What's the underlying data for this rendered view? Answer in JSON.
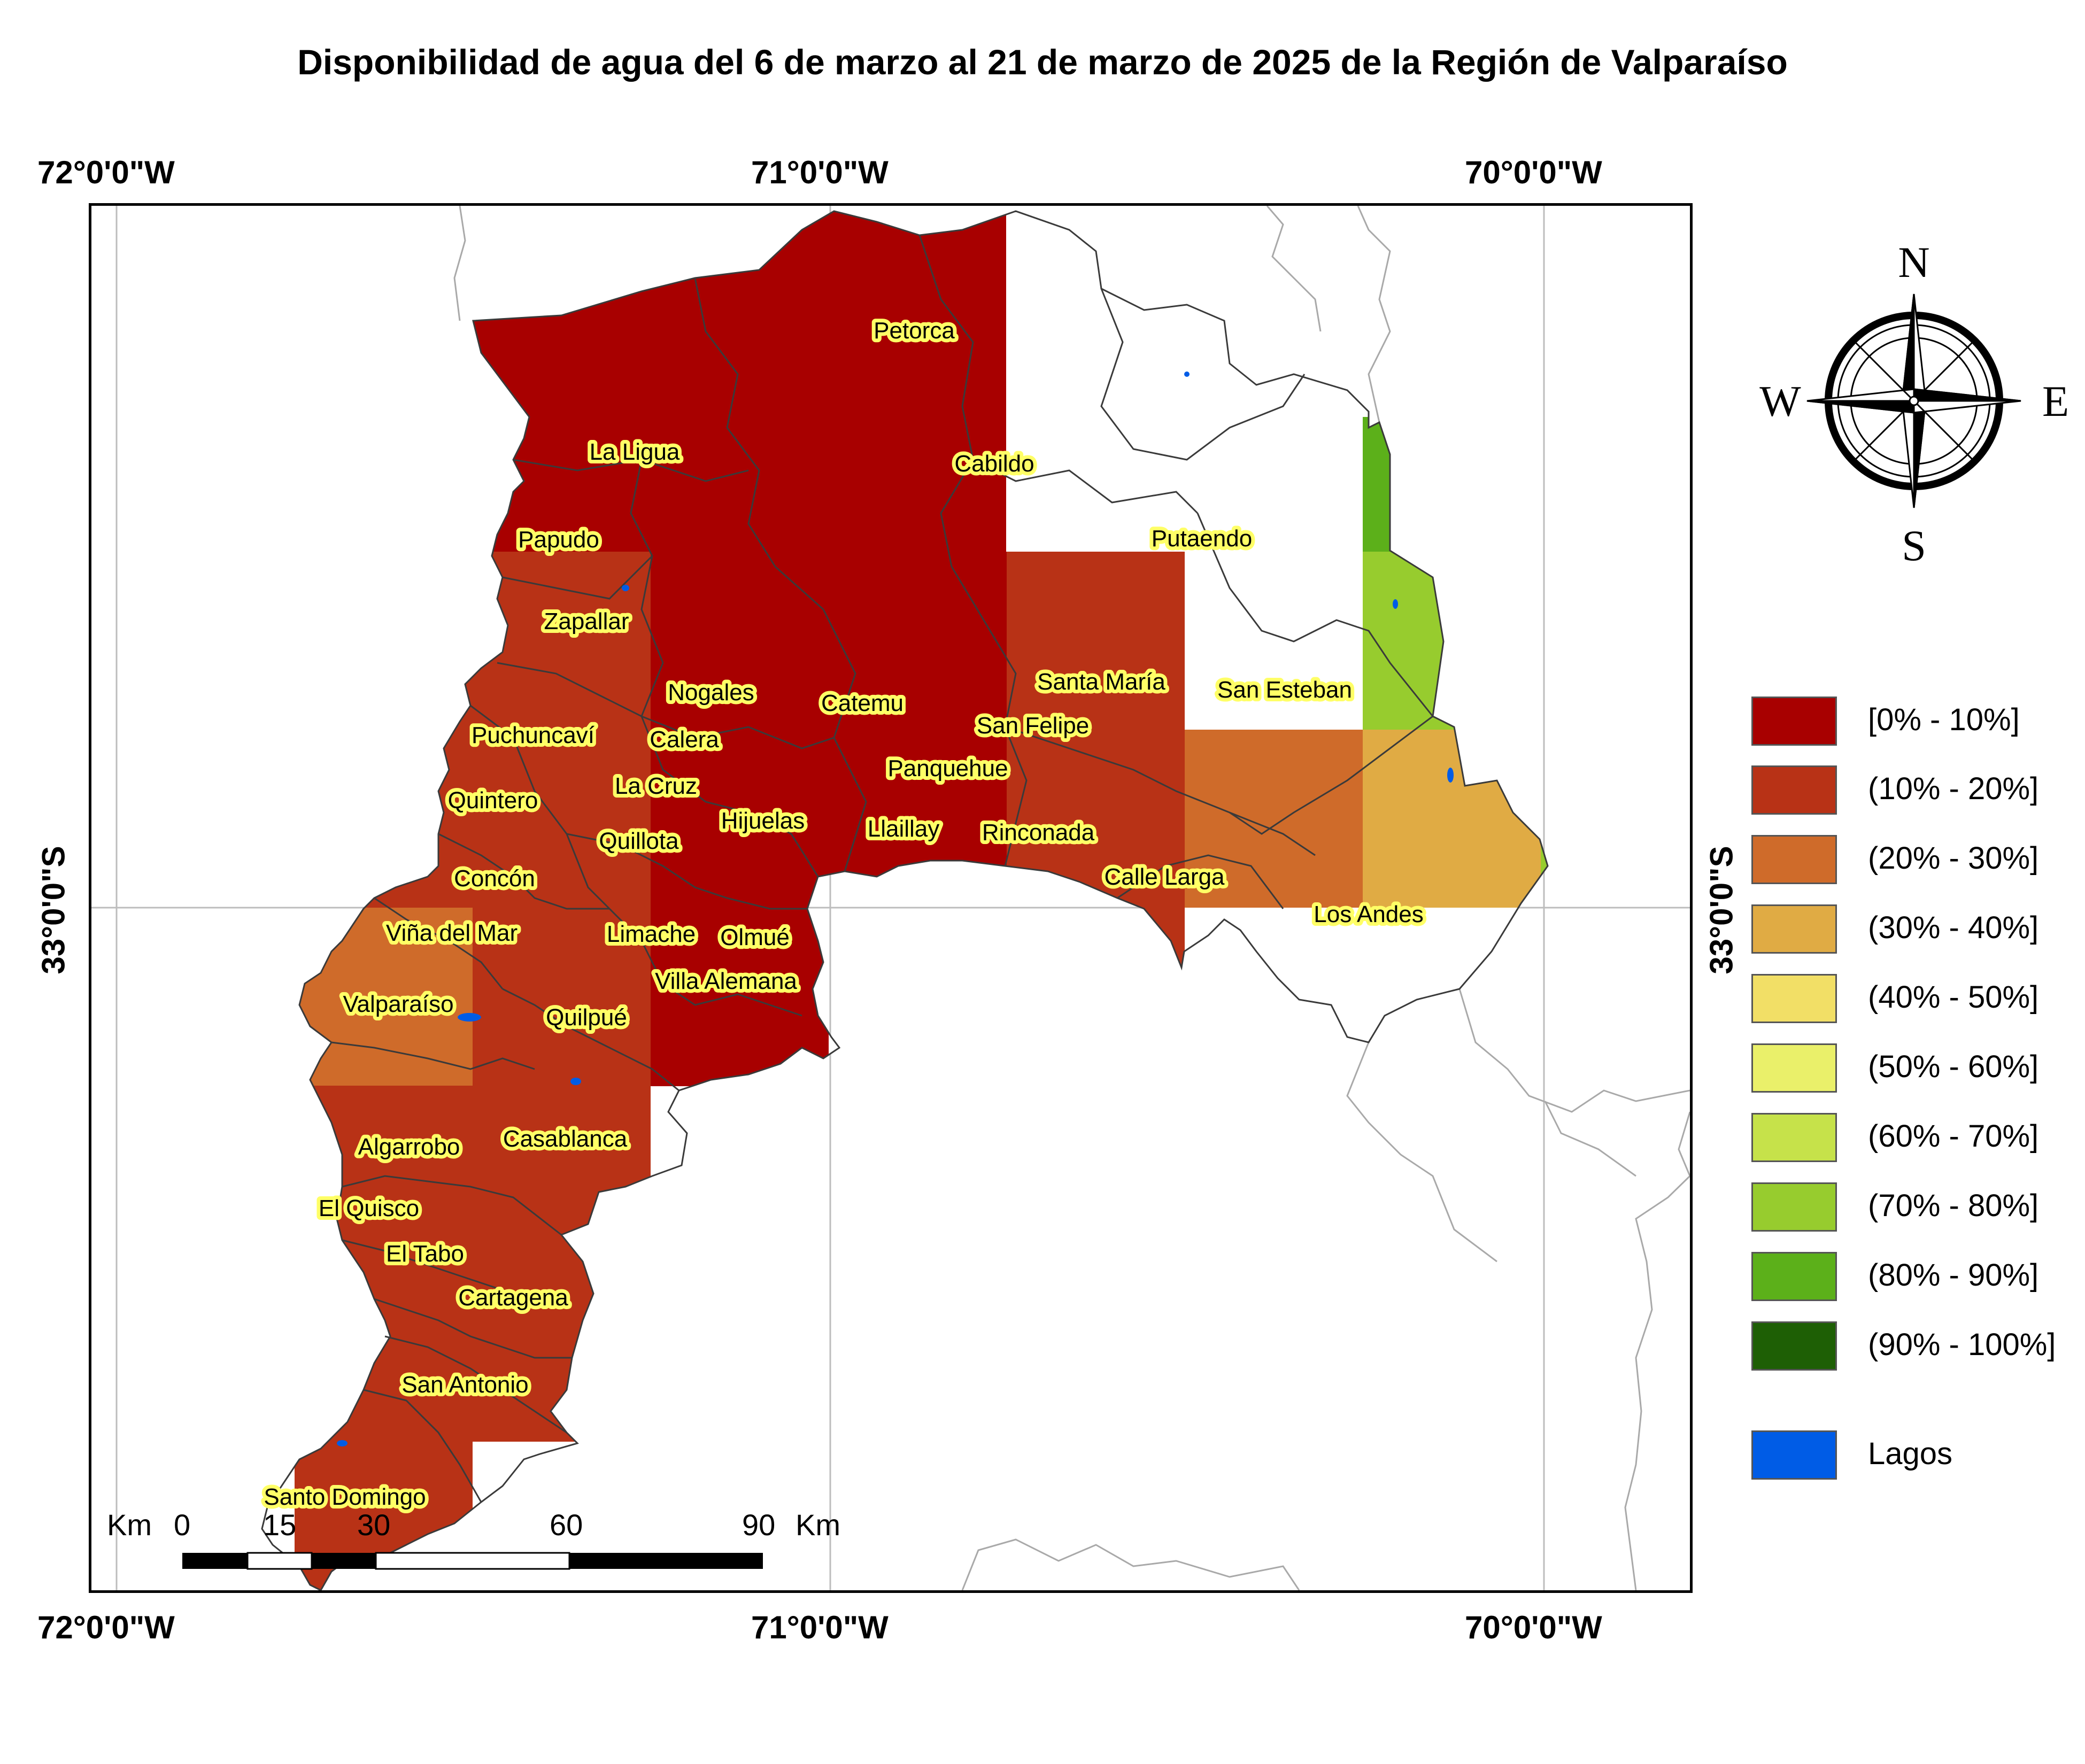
{
  "title": "Disponibilidad de agua del 6 de marzo al 21 de marzo de 2025 de la Región de Valparaíso",
  "coordinates": {
    "top": [
      "72°0'0\"W",
      "71°0'0\"W",
      "70°0'0\"W"
    ],
    "bottom": [
      "72°0'0\"W",
      "71°0'0\"W",
      "70°0'0\"W"
    ],
    "left": "33°0'0\"S",
    "right": "33°0'0\"S"
  },
  "compass": {
    "n": "N",
    "s": "S",
    "e": "E",
    "w": "W"
  },
  "legend": [
    {
      "label": "[0% - 10%]",
      "color": "#a80000"
    },
    {
      "label": "(10% - 20%]",
      "color": "#b83216"
    },
    {
      "label": "(20% - 30%]",
      "color": "#cf6b2a"
    },
    {
      "label": "(30% - 40%]",
      "color": "#e0ab44"
    },
    {
      "label": "(40% - 50%]",
      "color": "#f2df66"
    },
    {
      "label": "(50% - 60%]",
      "color": "#eaf06a"
    },
    {
      "label": "(60% - 70%]",
      "color": "#c6e24a"
    },
    {
      "label": "(70% - 80%]",
      "color": "#97cc2e"
    },
    {
      "label": "(80% - 90%]",
      "color": "#5cb01a"
    },
    {
      "label": "(90% - 100%]",
      "color": "#1e5f05"
    }
  ],
  "legend_lakes": {
    "label": "Lagos",
    "color": "#005ce6"
  },
  "scale_bar": {
    "unit_left": "Km",
    "ticks": [
      "0",
      "15",
      "30",
      "60",
      "90"
    ],
    "unit_right": "Km"
  },
  "municipalities": [
    "Petorca",
    "La Ligua",
    "Cabildo",
    "Papudo",
    "Putaendo",
    "Zapallar",
    "Nogales",
    "Catemu",
    "Santa María",
    "San Esteban",
    "Puchuncaví",
    "Calera",
    "San Felipe",
    "Panquehue",
    "Quintero",
    "La Cruz",
    "Hijuelas",
    "Llaillay",
    "Rinconada",
    "Quillota",
    "Concón",
    "Calle Larga",
    "Los Andes",
    "Viña del Mar",
    "Limache",
    "Olmué",
    "Villa Alemana",
    "Valparaíso",
    "Quilpué",
    "Casablanca",
    "Algarrobo",
    "El Quisco",
    "El Tabo",
    "Cartagena",
    "San Antonio",
    "Santo Domingo"
  ]
}
